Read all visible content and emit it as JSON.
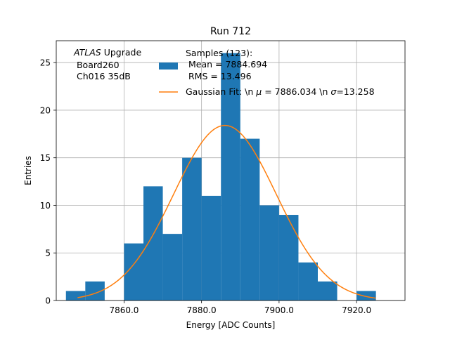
{
  "chart_data": {
    "type": "bar",
    "title": "Run 712",
    "xlabel": "Energy [ADC Counts]",
    "ylabel": "Entries",
    "xlim": [
      7842.5,
      7932.5
    ],
    "ylim": [
      0,
      27.3
    ],
    "grid": true,
    "x_ticks": [
      7860,
      7880,
      7900,
      7920
    ],
    "x_tick_labels": [
      "7860.0",
      "7880.0",
      "7900.0",
      "7920.0"
    ],
    "y_ticks": [
      0,
      5,
      10,
      15,
      20,
      25
    ],
    "y_tick_labels": [
      "0",
      "5",
      "10",
      "15",
      "20",
      "25"
    ],
    "bin_width": 5,
    "bins": [
      {
        "x0": 7845,
        "count": 1
      },
      {
        "x0": 7850,
        "count": 2
      },
      {
        "x0": 7855,
        "count": 0
      },
      {
        "x0": 7860,
        "count": 6
      },
      {
        "x0": 7865,
        "count": 12
      },
      {
        "x0": 7870,
        "count": 7
      },
      {
        "x0": 7875,
        "count": 15
      },
      {
        "x0": 7880,
        "count": 11
      },
      {
        "x0": 7885,
        "count": 26
      },
      {
        "x0": 7890,
        "count": 17
      },
      {
        "x0": 7895,
        "count": 10
      },
      {
        "x0": 7900,
        "count": 9
      },
      {
        "x0": 7905,
        "count": 4
      },
      {
        "x0": 7910,
        "count": 2
      },
      {
        "x0": 7915,
        "count": 0
      },
      {
        "x0": 7920,
        "count": 1
      }
    ],
    "gaussian_fit": {
      "mu": 7886.034,
      "sigma": 13.258,
      "amplitude": 18.4,
      "x_range": [
        7848,
        7925
      ]
    },
    "colors": {
      "histogram": "#1f77b4",
      "fit": "#ff7f0e",
      "grid": "#b0b0b0"
    },
    "annotation": {
      "atlas": "ATLAS",
      "upgrade": " Upgrade",
      "line2": " Board260",
      "line3": " Ch016 35dB"
    },
    "legend": {
      "placement": "upper-center",
      "histogram_label_lines": [
        "Samples (123):",
        " Mean = 7884.694",
        " RMS = 13.496"
      ],
      "fit_label_prefix": "Gaussian Fit: \\n ",
      "fit_mu_symbol": "μ",
      "fit_mu_text": " = 7886.034 \\n ",
      "fit_sigma_symbol": "σ",
      "fit_sigma_text": "=13.258"
    }
  }
}
